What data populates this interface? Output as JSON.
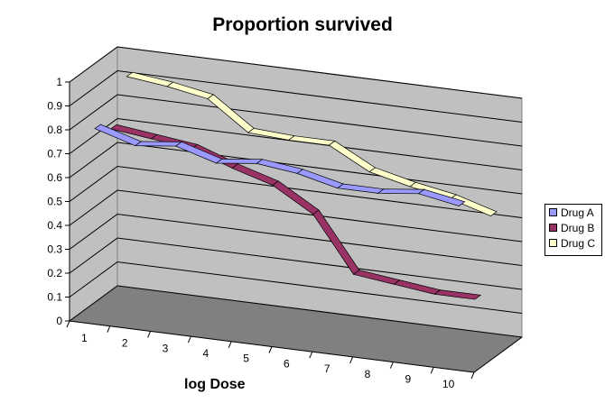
{
  "chart_data": {
    "type": "line",
    "subtype": "3d-ribbon",
    "title": "Proportion survived",
    "xlabel": "log Dose",
    "ylabel": "",
    "categories": [
      "1",
      "2",
      "3",
      "4",
      "5",
      "6",
      "7",
      "8",
      "9",
      "10"
    ],
    "ylim": [
      0,
      1
    ],
    "yticks": [
      "0",
      "0.1",
      "0.2",
      "0.3",
      "0.4",
      "0.5",
      "0.6",
      "0.7",
      "0.8",
      "0.9",
      "1"
    ],
    "grid": true,
    "legend": "right",
    "series": [
      {
        "name": "Drug A",
        "color": "#9999ff",
        "values": [
          0.8,
          0.75,
          0.77,
          0.72,
          0.74,
          0.72,
          0.68,
          0.68,
          0.7,
          0.67
        ]
      },
      {
        "name": "Drug B",
        "color": "#993366",
        "values": [
          0.75,
          0.73,
          0.71,
          0.65,
          0.6,
          0.5,
          0.27,
          0.25,
          0.23,
          0.23
        ]
      },
      {
        "name": "Drug C",
        "color": "#ffffcc",
        "values": [
          0.92,
          0.9,
          0.87,
          0.75,
          0.74,
          0.74,
          0.65,
          0.61,
          0.58,
          0.53
        ]
      }
    ],
    "colors": {
      "walls": "#c0c0c0",
      "floor": "#808080"
    }
  }
}
